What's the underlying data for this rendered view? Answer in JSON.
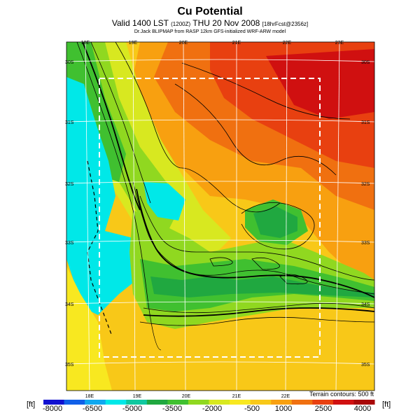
{
  "header": {
    "title": "Cu Potential",
    "subtitle_main": "Valid 1400 LST",
    "subtitle_small": "(1200Z)",
    "subtitle_date": "THU 20 Nov 2008",
    "subtitle_tail": "[18hrFcst@2356z]",
    "credit": "Dr.Jack BLIPMAP from RASP 12km GFS-initialized WRF-ARW model"
  },
  "map": {
    "lon_labels_top": [
      "18E",
      "19E",
      "20E",
      "21E",
      "22E",
      "23E"
    ],
    "lon_labels_bottom": [
      "18E",
      "19E",
      "20E",
      "21E",
      "22E"
    ],
    "lat_labels_left": [
      "30S",
      "31S",
      "32S",
      "33S",
      "34S",
      "35S"
    ],
    "lat_labels_right": [
      "30S",
      "31S",
      "32S",
      "33S",
      "34S",
      "35S"
    ],
    "terrain_note": "Terrain contours: 500 ft"
  },
  "colorbar": {
    "unit_left": "[ft]",
    "unit_right": "[ft]",
    "tick_labels": [
      "-8000",
      "-6500",
      "-5000",
      "-3500",
      "-2000",
      "-500",
      "1000",
      "2500",
      "4000"
    ],
    "colors": [
      "#1010d0",
      "#1060e8",
      "#10a8f0",
      "#00e8e8",
      "#10c8a0",
      "#20a840",
      "#40c030",
      "#90d820",
      "#d8e820",
      "#f8e820",
      "#f8c818",
      "#f8a010",
      "#f07010",
      "#e84010",
      "#d01010",
      "#a80808"
    ]
  }
}
